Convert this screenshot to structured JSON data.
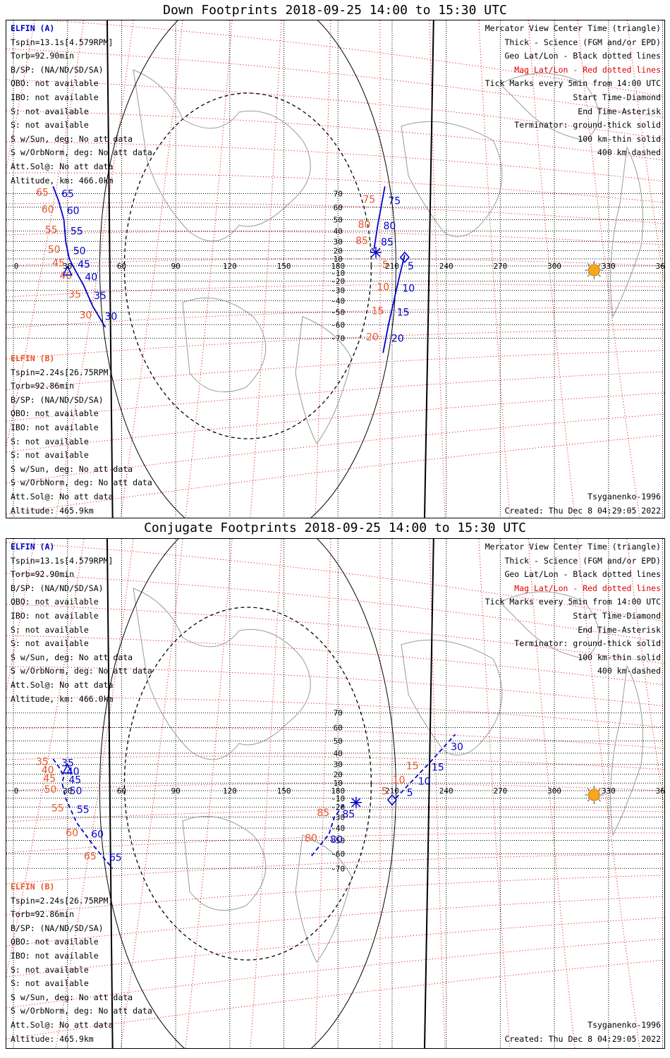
{
  "colors": {
    "elfin_a": "#0000cc",
    "elfin_b": "#e8552b",
    "mag_grid": "#e00000",
    "geo_grid": "#000000",
    "sun": "#f5a81e"
  },
  "panels": [
    {
      "title": "Down Footprints 2018-09-25 14:00 to 15:30 UTC",
      "left_text": {
        "a_name": "ELFIN (A)",
        "a_lines": [
          "Tspin=13.1s[4.579RPM]",
          "Torb=92.90min",
          "B/SP: (NA/ND/SD/SA)",
          "OBO: not available",
          "IBO: not available",
          "S: not available",
          "S: not available",
          "S w/Sun, deg: No att data",
          "S w/OrbNorm, deg: No att data",
          "Att.Sol@: No att data",
          "Altitude, km: 466.0km"
        ],
        "b_name": "ELFIN (B)",
        "b_lines": [
          "Tspin=2.24s[26.75RPM]",
          "Torb=92.86min",
          "B/SP: (NA/ND/SD/SA)",
          "OBO: not available",
          "IBO: not available",
          "S: not available",
          "S: not available",
          "S w/Sun, deg: No att data",
          "S w/OrbNorm, deg: No att data",
          "Att.Sol@: No att data",
          "Altitude: 465.9km"
        ]
      },
      "right_text": {
        "lines": [
          "Mercator View Center Time (triangle)",
          "Thick - Science (FGM and/or EPD)",
          "Geo Lat/Lon - Black dotted lines",
          "Mag Lat/Lon - Red dotted lines",
          "Tick Marks every 5min from 14:00 UTC",
          "Start Time-Diamond",
          "End Time-Asterisk",
          "Terminator: ground-thick solid",
          "100 km-thin solid",
          "400 km-dashed"
        ],
        "model": "Tsyganenko-1996",
        "created": "Created: Thu Dec  8 04:29:05 2022"
      }
    },
    {
      "title": "Conjugate Footprints 2018-09-25 14:00 to 15:30 UTC",
      "left_text": {
        "a_name": "ELFIN (A)",
        "a_lines": [
          "Tspin=13.1s[4.579RPM]",
          "Torb=92.90min",
          "B/SP: (NA/ND/SD/SA)",
          "OBO: not available",
          "IBO: not available",
          "S: not available",
          "S: not available",
          "S w/Sun, deg: No att data",
          "S w/OrbNorm, deg: No att data",
          "Att.Sol@: No att data",
          "Altitude, km: 466.0km"
        ],
        "b_name": "ELFIN (B)",
        "b_lines": [
          "Tspin=2.24s[26.75RPM]",
          "Torb=92.86min",
          "B/SP: (NA/ND/SD/SA)",
          "OBO: not available",
          "IBO: not available",
          "S: not available",
          "S: not available",
          "S w/Sun, deg: No att data",
          "S w/OrbNorm, deg: No att data",
          "Att.Sol@: No att data",
          "Altitude: 465.9km"
        ]
      },
      "right_text": {
        "lines": [
          "Mercator View Center Time (triangle)",
          "Thick - Science (FGM and/or EPD)",
          "Geo Lat/Lon - Black dotted lines",
          "Mag Lat/Lon - Red dotted lines",
          "Tick Marks every 5min from 14:00 UTC",
          "Start Time-Diamond",
          "End Time-Asterisk",
          "Terminator: ground-thick solid",
          "100 km-thin solid",
          "400 km-dashed"
        ],
        "model": "Tsyganenko-1996",
        "created": "Created: Thu Dec  8 04:29:05 2022"
      }
    }
  ],
  "chart_data": [
    {
      "type": "scatter",
      "title": "Down Footprints 2018-09-25 14:00 to 15:30 UTC",
      "x_ticks": [
        0,
        30,
        60,
        90,
        120,
        150,
        180,
        210,
        240,
        270,
        300,
        330,
        360
      ],
      "y_ticks": [
        -70,
        -60,
        -50,
        -40,
        -30,
        -20,
        -10,
        10,
        20,
        30,
        40,
        50,
        60,
        70
      ],
      "xlim": [
        0,
        360
      ],
      "series": [
        {
          "name": "ELFIN (A)",
          "style": "solid",
          "x": [
            22,
            25,
            28,
            29,
            31,
            34,
            39,
            44,
            51
          ],
          "y": [
            75,
            65,
            50,
            30,
            10,
            -5,
            -25,
            -45,
            -62
          ],
          "tick_labels_a": [
            "65",
            "60",
            "55",
            "50",
            "45",
            "40",
            "35",
            "30"
          ],
          "tick_labels_b": [
            "65",
            "60",
            "55",
            "50",
            "45",
            "40",
            "35",
            "30"
          ]
        },
        {
          "name": "ELFIN (A)",
          "style": "solid",
          "segment": "east",
          "x": [
            206,
            202,
            200
          ],
          "y": [
            75,
            45,
            22
          ],
          "tick_labels_a": [
            "75",
            "80",
            "85"
          ],
          "tick_labels_b": [
            "75",
            "80",
            "85"
          ]
        },
        {
          "name": "ELFIN (A)",
          "style": "solid",
          "segment": "south",
          "x": [
            217,
            214,
            211,
            208,
            205
          ],
          "y": [
            15,
            -15,
            -40,
            -60,
            -80
          ],
          "tick_labels_a": [
            "5",
            "10",
            "15",
            "20"
          ],
          "tick_labels_b": [
            "5",
            "10",
            "15",
            "20"
          ]
        }
      ],
      "markers": {
        "center_triangle": [
          30,
          -8
        ],
        "start_diamond": [
          217,
          12
        ],
        "end_asterisk": [
          201,
          18
        ],
        "sun": [
          322,
          0
        ]
      }
    },
    {
      "type": "scatter",
      "title": "Conjugate Footprints 2018-09-25 14:00 to 15:30 UTC",
      "x_ticks": [
        0,
        30,
        60,
        90,
        120,
        150,
        180,
        210,
        240,
        270,
        300,
        330,
        360
      ],
      "y_ticks": [
        -70,
        -60,
        -50,
        -40,
        -30,
        -20,
        -10,
        10,
        20,
        30,
        40,
        50,
        60,
        70
      ],
      "xlim": [
        0,
        360
      ],
      "series": [
        {
          "name": "ELFIN (A)",
          "style": "dashed",
          "x": [
            22,
            25,
            28,
            27,
            29,
            35,
            45,
            55
          ],
          "y": [
            35,
            28,
            18,
            10,
            -10,
            -35,
            -55,
            -70
          ],
          "tick_labels_a": [
            "35",
            "40",
            "45",
            "50",
            "55",
            "60",
            "65"
          ],
          "tick_labels_b": [
            "35",
            "40",
            "45",
            "50",
            "55",
            "60",
            "65"
          ]
        },
        {
          "name": "ELFIN (A)",
          "style": "dashed",
          "segment": "east",
          "x": [
            212,
            220,
            230,
            245
          ],
          "y": [
            -10,
            10,
            30,
            55
          ],
          "tick_labels_a": [
            "5",
            "10",
            "15",
            "30"
          ],
          "tick_labels_b": [
            "5",
            "10",
            "15"
          ]
        },
        {
          "name": "ELFIN (A)",
          "style": "dashed",
          "segment": "south",
          "x": [
            183,
            178,
            175,
            165
          ],
          "y": [
            -18,
            -30,
            -45,
            -62
          ],
          "tick_labels_a": [
            "85",
            "80"
          ],
          "tick_labels_b": [
            "85",
            "80"
          ]
        }
      ],
      "markers": {
        "center_triangle": [
          30,
          25
        ],
        "start_diamond": [
          210,
          -12
        ],
        "end_asterisk": [
          190,
          -15
        ],
        "sun": [
          322,
          0
        ]
      }
    }
  ]
}
